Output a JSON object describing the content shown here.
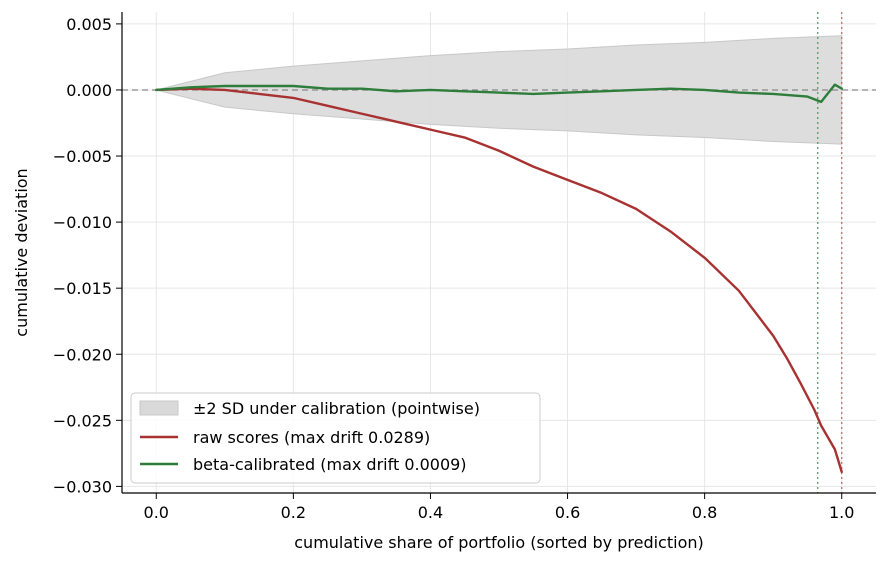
{
  "chart_data": {
    "type": "line",
    "title": "",
    "xlabel": "cumulative share of portfolio (sorted by prediction)",
    "ylabel": "cumulative deviation",
    "xlim": [
      -0.05,
      1.05
    ],
    "ylim": [
      -0.0305,
      0.0059
    ],
    "x_ticks": [
      0.0,
      0.2,
      0.4,
      0.6,
      0.8,
      1.0
    ],
    "x_tick_labels": [
      "0.0",
      "0.2",
      "0.4",
      "0.6",
      "0.8",
      "1.0"
    ],
    "y_ticks": [
      0.005,
      0.0,
      -0.005,
      -0.01,
      -0.015,
      -0.02,
      -0.025,
      -0.03
    ],
    "y_tick_labels": [
      "0.005",
      "0.000",
      "−0.005",
      "−0.010",
      "−0.015",
      "−0.020",
      "−0.025",
      "−0.030"
    ],
    "grid": true,
    "legend_position": "lower-left",
    "colors": {
      "band": "#d9d9d9",
      "raw": "#a83232",
      "calibrated": "#2e7d3a",
      "zero_line": "#888888",
      "vline_calibrated": "#5a9a6a",
      "vline_raw": "#c46b6b"
    },
    "band": {
      "name": "±2 SD under calibration (pointwise)",
      "x": [
        0.0,
        0.1,
        0.2,
        0.3,
        0.4,
        0.5,
        0.6,
        0.7,
        0.8,
        0.9,
        1.0
      ],
      "upper": [
        0.0,
        0.0013,
        0.0018,
        0.0022,
        0.0026,
        0.0029,
        0.0031,
        0.0034,
        0.0036,
        0.0039,
        0.0041
      ],
      "lower": [
        0.0,
        -0.0013,
        -0.0018,
        -0.0022,
        -0.0026,
        -0.0029,
        -0.0031,
        -0.0034,
        -0.0036,
        -0.0039,
        -0.0041
      ]
    },
    "series": [
      {
        "name": "raw scores (max drift 0.0289)",
        "x": [
          0.0,
          0.05,
          0.1,
          0.15,
          0.2,
          0.25,
          0.3,
          0.35,
          0.4,
          0.45,
          0.5,
          0.55,
          0.6,
          0.65,
          0.7,
          0.75,
          0.8,
          0.85,
          0.9,
          0.92,
          0.94,
          0.96,
          0.97,
          0.98,
          0.99,
          1.0
        ],
        "y": [
          0.0,
          0.0001,
          0.0,
          -0.0003,
          -0.0006,
          -0.0012,
          -0.0018,
          -0.0024,
          -0.003,
          -0.0036,
          -0.0046,
          -0.0058,
          -0.0068,
          -0.0078,
          -0.009,
          -0.0107,
          -0.0127,
          -0.0152,
          -0.0186,
          -0.0203,
          -0.0222,
          -0.0242,
          -0.0254,
          -0.0263,
          -0.0272,
          -0.0289
        ]
      },
      {
        "name": "beta-calibrated (max drift 0.0009)",
        "x": [
          0.0,
          0.05,
          0.1,
          0.15,
          0.2,
          0.25,
          0.3,
          0.35,
          0.4,
          0.45,
          0.5,
          0.55,
          0.6,
          0.65,
          0.7,
          0.75,
          0.8,
          0.85,
          0.9,
          0.95,
          0.97,
          0.99,
          1.0
        ],
        "y": [
          0.0,
          0.0002,
          0.0003,
          0.0003,
          0.0003,
          0.0001,
          0.0001,
          -0.0001,
          0.0,
          -0.0001,
          -0.0002,
          -0.0003,
          -0.0002,
          -0.0001,
          0.0,
          0.0001,
          0.0,
          -0.0002,
          -0.0003,
          -0.0005,
          -0.0009,
          0.0004,
          0.0001
        ]
      }
    ],
    "vlines": [
      0.965,
      1.0
    ]
  }
}
